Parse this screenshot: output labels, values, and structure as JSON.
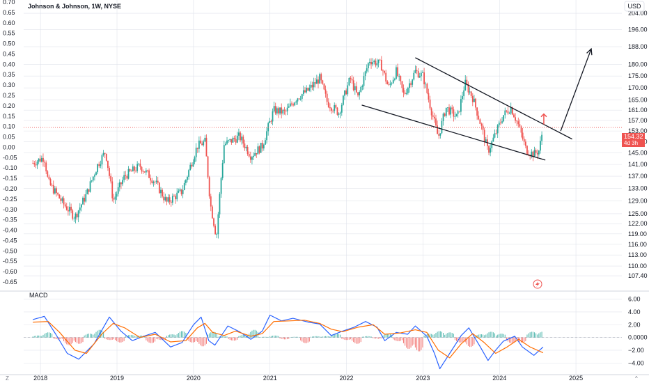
{
  "header": {
    "title": "Johnson & Johnson, 1W, NYSE",
    "currency": "USD",
    "macd_label": "MACD",
    "corner_left": "Z",
    "corner_right": "^"
  },
  "price_badge": {
    "price": "154.32",
    "countdown": "4d 3h"
  },
  "colors": {
    "up": "#26a69a",
    "down": "#ef5350",
    "macd_line": "#2962ff",
    "signal_line": "#ff6d00",
    "grid": "#e0e3eb",
    "price_line": "#ef5350",
    "annotation": "#131722"
  },
  "chart_data": [
    {
      "type": "candlestick",
      "title": "Johnson & Johnson, 1W, NYSE",
      "x_ticks": [
        "2018",
        "2019",
        "2020",
        "2021",
        "2022",
        "2023",
        "2024",
        "2025"
      ],
      "right_axis_ticks": [
        "204.00",
        "196.00",
        "188.00",
        "180.00",
        "175.00",
        "170.00",
        "165.00",
        "161.00",
        "157.00",
        "153.00",
        "149.00",
        "145.00",
        "141.00",
        "137.00",
        "133.00",
        "129.00",
        "125.00",
        "122.00",
        "119.00",
        "116.00",
        "113.00",
        "110.00",
        "107.40"
      ],
      "left_axis_ticks": [
        "0.70",
        "0.65",
        "0.60",
        "0.55",
        "0.50",
        "0.45",
        "0.40",
        "0.35",
        "0.30",
        "0.25",
        "0.20",
        "0.15",
        "0.10",
        "0.05",
        "0.00",
        "-0.05",
        "-0.10",
        "-0.15",
        "-0.20",
        "-0.25",
        "-0.30",
        "-0.35",
        "-0.40",
        "-0.45",
        "-0.50",
        "-0.55",
        "-0.60",
        "-0.65"
      ],
      "y_scale": "log",
      "last_price": 154.32,
      "price_path": [
        [
          2017.9,
          141.5
        ],
        [
          2018.05,
          143.5
        ],
        [
          2018.1,
          135.0
        ],
        [
          2018.3,
          128.0
        ],
        [
          2018.45,
          124.0
        ],
        [
          2018.6,
          131.0
        ],
        [
          2018.75,
          141.0
        ],
        [
          2018.85,
          145.5
        ],
        [
          2018.95,
          129.0
        ],
        [
          2019.1,
          137.0
        ],
        [
          2019.3,
          140.5
        ],
        [
          2019.5,
          135.0
        ],
        [
          2019.65,
          128.5
        ],
        [
          2019.85,
          132.0
        ],
        [
          2020.05,
          147.5
        ],
        [
          2020.15,
          149.0
        ],
        [
          2020.22,
          128.0
        ],
        [
          2020.3,
          118.0
        ],
        [
          2020.4,
          148.0
        ],
        [
          2020.6,
          151.0
        ],
        [
          2020.75,
          144.0
        ],
        [
          2020.9,
          147.5
        ],
        [
          2021.05,
          161.0
        ],
        [
          2021.2,
          160.0
        ],
        [
          2021.35,
          166.0
        ],
        [
          2021.5,
          169.0
        ],
        [
          2021.65,
          174.0
        ],
        [
          2021.75,
          164.0
        ],
        [
          2021.9,
          160.0
        ],
        [
          2022.05,
          174.0
        ],
        [
          2022.15,
          166.0
        ],
        [
          2022.3,
          182.0
        ],
        [
          2022.45,
          180.0
        ],
        [
          2022.55,
          170.0
        ],
        [
          2022.65,
          177.0
        ],
        [
          2022.75,
          167.0
        ],
        [
          2022.9,
          177.0
        ],
        [
          2023.0,
          175.0
        ],
        [
          2023.1,
          162.0
        ],
        [
          2023.2,
          150.5
        ],
        [
          2023.3,
          162.0
        ],
        [
          2023.45,
          158.0
        ],
        [
          2023.55,
          172.0
        ],
        [
          2023.65,
          166.0
        ],
        [
          2023.75,
          156.0
        ],
        [
          2023.85,
          145.5
        ],
        [
          2023.95,
          152.0
        ],
        [
          2024.05,
          159.0
        ],
        [
          2024.15,
          162.0
        ],
        [
          2024.25,
          155.0
        ],
        [
          2024.35,
          146.0
        ],
        [
          2024.45,
          144.5
        ],
        [
          2024.52,
          146.0
        ],
        [
          2024.57,
          154.32
        ]
      ],
      "trendlines": [
        {
          "name": "upper",
          "from": [
            2022.9,
            183.0
          ],
          "to": [
            2024.95,
            150.0
          ]
        },
        {
          "name": "lower",
          "from": [
            2022.2,
            163.0
          ],
          "to": [
            2024.6,
            142.5
          ]
        }
      ],
      "projection_arrow": {
        "from": [
          2024.8,
          153.0
        ],
        "to": [
          2025.2,
          187.0
        ]
      },
      "breakout_arrow": {
        "from": [
          2024.58,
          155.5
        ],
        "to": [
          2024.58,
          159.5
        ]
      }
    },
    {
      "type": "line",
      "title": "MACD",
      "y_ticks": [
        "6.00",
        "4.00",
        "2.00",
        "0.0000",
        "−2.00",
        "−4.00"
      ],
      "series": [
        {
          "points": [
            [
              2017.9,
              2.8
            ],
            [
              2018.05,
              3.3
            ],
            [
              2018.2,
              0.5
            ],
            [
              2018.35,
              -2.5
            ],
            [
              2018.5,
              -3.4
            ],
            [
              2018.7,
              -1.0
            ],
            [
              2018.9,
              3.2
            ],
            [
              2019.05,
              1.0
            ],
            [
              2019.2,
              -0.5
            ],
            [
              2019.35,
              0.2
            ],
            [
              2019.5,
              0.8
            ],
            [
              2019.7,
              -1.5
            ],
            [
              2019.85,
              -0.8
            ],
            [
              2020.0,
              2.0
            ],
            [
              2020.1,
              3.2
            ],
            [
              2020.2,
              -0.5
            ],
            [
              2020.28,
              -1.2
            ],
            [
              2020.45,
              1.8
            ],
            [
              2020.6,
              0.9
            ],
            [
              2020.75,
              -0.3
            ],
            [
              2020.9,
              1.0
            ],
            [
              2021.0,
              3.5
            ],
            [
              2021.15,
              2.6
            ],
            [
              2021.3,
              3.0
            ],
            [
              2021.5,
              2.4
            ],
            [
              2021.65,
              2.1
            ],
            [
              2021.8,
              0.3
            ],
            [
              2021.95,
              1.0
            ],
            [
              2022.1,
              1.6
            ],
            [
              2022.25,
              2.5
            ],
            [
              2022.4,
              1.6
            ],
            [
              2022.5,
              -0.5
            ],
            [
              2022.65,
              0.8
            ],
            [
              2022.8,
              0.5
            ],
            [
              2022.9,
              1.8
            ],
            [
              2023.05,
              0.2
            ],
            [
              2023.15,
              -2.5
            ],
            [
              2023.22,
              -4.9
            ],
            [
              2023.35,
              -2.5
            ],
            [
              2023.5,
              0.3
            ],
            [
              2023.6,
              1.5
            ],
            [
              2023.75,
              -1.5
            ],
            [
              2023.85,
              -3.6
            ],
            [
              2023.95,
              -2.0
            ],
            [
              2024.05,
              -0.6
            ],
            [
              2024.2,
              0.2
            ],
            [
              2024.3,
              -1.5
            ],
            [
              2024.45,
              -2.8
            ],
            [
              2024.57,
              -1.5
            ]
          ]
        },
        {
          "points": [
            [
              2017.9,
              2.4
            ],
            [
              2018.1,
              2.5
            ],
            [
              2018.25,
              0.8
            ],
            [
              2018.45,
              -2.0
            ],
            [
              2018.6,
              -2.5
            ],
            [
              2018.8,
              0.5
            ],
            [
              2018.95,
              2.2
            ],
            [
              2019.1,
              1.5
            ],
            [
              2019.3,
              0.0
            ],
            [
              2019.5,
              0.5
            ],
            [
              2019.7,
              -0.7
            ],
            [
              2019.9,
              -0.5
            ],
            [
              2020.05,
              1.5
            ],
            [
              2020.15,
              2.2
            ],
            [
              2020.25,
              0.8
            ],
            [
              2020.4,
              0.3
            ],
            [
              2020.55,
              1.0
            ],
            [
              2020.75,
              0.2
            ],
            [
              2020.9,
              0.6
            ],
            [
              2021.05,
              2.5
            ],
            [
              2021.25,
              2.6
            ],
            [
              2021.45,
              2.7
            ],
            [
              2021.65,
              2.2
            ],
            [
              2021.8,
              1.3
            ],
            [
              2021.95,
              0.9
            ],
            [
              2022.15,
              1.6
            ],
            [
              2022.35,
              2.0
            ],
            [
              2022.5,
              0.5
            ],
            [
              2022.7,
              0.7
            ],
            [
              2022.9,
              1.2
            ],
            [
              2023.05,
              0.8
            ],
            [
              2023.2,
              -2.0
            ],
            [
              2023.35,
              -3.2
            ],
            [
              2023.5,
              -1.0
            ],
            [
              2023.65,
              0.6
            ],
            [
              2023.8,
              -0.8
            ],
            [
              2023.95,
              -2.5
            ],
            [
              2024.1,
              -1.5
            ],
            [
              2024.25,
              -0.3
            ],
            [
              2024.4,
              -1.5
            ],
            [
              2024.57,
              -2.4
            ]
          ]
        }
      ],
      "histogram": [
        0.3,
        0.8,
        -0.3,
        -1.2,
        -1.0,
        0.6,
        1.2,
        -0.4,
        -0.8,
        0.4,
        0.3,
        -0.9,
        -0.4,
        0.5,
        1.0,
        -0.8,
        -1.4,
        0.9,
        0.2,
        -0.5,
        0.4,
        1.2,
        0.1,
        0.3,
        -0.3,
        0.1,
        -0.9,
        0.2,
        0.2,
        0.6,
        -0.4,
        -1.0,
        0.2,
        -0.2,
        0.6,
        -0.6,
        -1.8,
        -2.2,
        0.6,
        1.0,
        0.8,
        -0.8,
        -1.5,
        0.5,
        0.9,
        0.6,
        -0.9,
        -0.8,
        0.9
      ]
    }
  ]
}
